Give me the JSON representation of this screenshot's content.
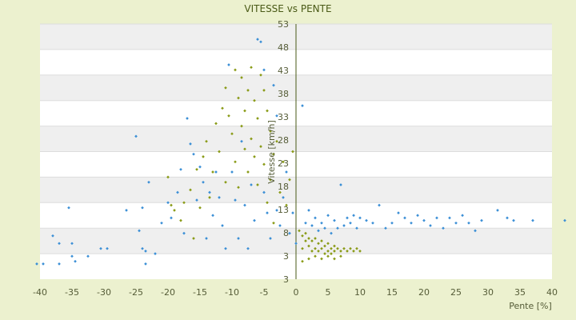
{
  "chart_data": {
    "type": "scatter",
    "title": "VITESSE vs PENTE",
    "xlabel": "Pente [%]",
    "ylabel": "Vitesse [km/h]",
    "xlim": [
      -40,
      40
    ],
    "ylim": [
      3,
      53
    ],
    "xticks": [
      "-40",
      "-35",
      "-30",
      "-25",
      "-20",
      "-15",
      "-10",
      "-5",
      "0",
      "5",
      "10",
      "15",
      "20",
      "25",
      "30",
      "35",
      "40"
    ],
    "yticks": [
      "3",
      "3",
      "8",
      "13",
      "18",
      "23",
      "28",
      "33",
      "38",
      "43",
      "48",
      "53"
    ],
    "grid": "horizontal alternating bands",
    "legend": "none",
    "colors": {
      "background": "#ecf1cf",
      "plot_band_light": "#ffffff",
      "plot_band_dark": "#efefef",
      "series_blue": "#3b8fd6",
      "series_olive": "#8a9b17",
      "axis": "#4a5a17"
    },
    "series": [
      {
        "color": "#3b8fd6",
        "points": [
          [
            -40.5,
            6.0
          ],
          [
            -39.5,
            6.0
          ],
          [
            -38.0,
            11.5
          ],
          [
            -37.0,
            10.0
          ],
          [
            -37.0,
            6.0
          ],
          [
            -35.5,
            17.0
          ],
          [
            -35.0,
            10.0
          ],
          [
            -35.0,
            7.5
          ],
          [
            -34.5,
            6.5
          ],
          [
            -32.5,
            7.5
          ],
          [
            -30.5,
            9.0
          ],
          [
            -29.5,
            9.0
          ],
          [
            -26.5,
            16.5
          ],
          [
            -25.0,
            31.0
          ],
          [
            -24.5,
            12.5
          ],
          [
            -24.0,
            17.0
          ],
          [
            -24.0,
            9.0
          ],
          [
            -23.5,
            6.0
          ],
          [
            -23.5,
            8.5
          ],
          [
            -23.0,
            22.0
          ],
          [
            -22.0,
            8.0
          ],
          [
            -21.0,
            14.0
          ],
          [
            -20.0,
            18.0
          ],
          [
            -19.5,
            15.0
          ],
          [
            -18.5,
            20.0
          ],
          [
            -18.0,
            24.5
          ],
          [
            -17.5,
            12.0
          ],
          [
            -17.0,
            34.5
          ],
          [
            -16.5,
            29.5
          ],
          [
            -16.0,
            27.5
          ],
          [
            -15.5,
            18.5
          ],
          [
            -15.0,
            25.0
          ],
          [
            -14.5,
            22.0
          ],
          [
            -14.0,
            11.0
          ],
          [
            -13.5,
            20.0
          ],
          [
            -13.0,
            15.5
          ],
          [
            -12.5,
            24.0
          ],
          [
            -12.0,
            19.0
          ],
          [
            -11.5,
            13.5
          ],
          [
            -11.0,
            9.0
          ],
          [
            -10.5,
            45.0
          ],
          [
            -10.0,
            24.0
          ],
          [
            -9.5,
            18.5
          ],
          [
            -9.0,
            11.0
          ],
          [
            -8.5,
            30.0
          ],
          [
            -8.0,
            17.5
          ],
          [
            -7.5,
            9.0
          ],
          [
            -7.0,
            21.5
          ],
          [
            -6.5,
            14.5
          ],
          [
            -6.0,
            50.0
          ],
          [
            -5.5,
            49.5
          ],
          [
            -5.0,
            44.0
          ],
          [
            -5.0,
            20.0
          ],
          [
            -4.5,
            16.0
          ],
          [
            -4.0,
            11.0
          ],
          [
            -3.5,
            41.0
          ],
          [
            -3.0,
            35.0
          ],
          [
            -3.0,
            16.5
          ],
          [
            -2.5,
            13.5
          ],
          [
            -2.0,
            19.0
          ],
          [
            -1.5,
            24.0
          ],
          [
            -1.0,
            12.0
          ],
          [
            -0.5,
            16.0
          ],
          [
            0.0,
            10.0
          ],
          [
            1.0,
            37.0
          ],
          [
            1.5,
            14.0
          ],
          [
            2.0,
            16.5
          ],
          [
            2.5,
            13.5
          ],
          [
            3.0,
            15.0
          ],
          [
            3.5,
            12.5
          ],
          [
            4.0,
            14.0
          ],
          [
            4.5,
            13.0
          ],
          [
            5.0,
            15.5
          ],
          [
            5.5,
            12.0
          ],
          [
            6.0,
            14.5
          ],
          [
            6.5,
            13.0
          ],
          [
            7.0,
            21.5
          ],
          [
            7.5,
            13.5
          ],
          [
            8.0,
            15.0
          ],
          [
            8.5,
            14.0
          ],
          [
            9.0,
            15.5
          ],
          [
            9.5,
            13.0
          ],
          [
            10.0,
            15.0
          ],
          [
            11.0,
            14.5
          ],
          [
            12.0,
            14.0
          ],
          [
            13.0,
            17.5
          ],
          [
            14.0,
            13.0
          ],
          [
            15.0,
            14.0
          ],
          [
            16.0,
            16.0
          ],
          [
            17.0,
            15.0
          ],
          [
            18.0,
            14.0
          ],
          [
            19.0,
            15.5
          ],
          [
            20.0,
            14.5
          ],
          [
            21.0,
            13.5
          ],
          [
            22.0,
            15.0
          ],
          [
            23.0,
            13.0
          ],
          [
            24.0,
            15.0
          ],
          [
            25.0,
            14.0
          ],
          [
            26.0,
            15.5
          ],
          [
            27.0,
            14.0
          ],
          [
            28.0,
            12.5
          ],
          [
            29.0,
            14.5
          ],
          [
            31.5,
            16.5
          ],
          [
            33.0,
            15.0
          ],
          [
            34.0,
            14.5
          ],
          [
            37.0,
            14.5
          ],
          [
            42.0,
            14.5
          ]
        ]
      },
      {
        "color": "#8a9b17",
        "points": [
          [
            -20.0,
            23.0
          ],
          [
            -19.5,
            17.5
          ],
          [
            -19.0,
            16.5
          ],
          [
            -18.0,
            14.5
          ],
          [
            -17.5,
            18.0
          ],
          [
            -16.5,
            20.5
          ],
          [
            -16.0,
            11.0
          ],
          [
            -15.5,
            24.5
          ],
          [
            -15.0,
            17.0
          ],
          [
            -14.5,
            27.0
          ],
          [
            -14.0,
            30.0
          ],
          [
            -13.5,
            19.0
          ],
          [
            -13.0,
            24.0
          ],
          [
            -12.5,
            33.5
          ],
          [
            -12.0,
            28.0
          ],
          [
            -11.5,
            36.5
          ],
          [
            -11.0,
            22.0
          ],
          [
            -11.0,
            40.5
          ],
          [
            -10.5,
            35.0
          ],
          [
            -10.0,
            31.5
          ],
          [
            -9.5,
            44.0
          ],
          [
            -9.5,
            26.0
          ],
          [
            -9.0,
            38.5
          ],
          [
            -9.0,
            21.0
          ],
          [
            -8.5,
            42.5
          ],
          [
            -8.5,
            33.0
          ],
          [
            -8.0,
            28.5
          ],
          [
            -8.0,
            36.0
          ],
          [
            -7.5,
            40.0
          ],
          [
            -7.5,
            24.0
          ],
          [
            -7.0,
            44.5
          ],
          [
            -7.0,
            30.5
          ],
          [
            -6.5,
            38.0
          ],
          [
            -6.5,
            27.0
          ],
          [
            -6.0,
            34.5
          ],
          [
            -6.0,
            21.5
          ],
          [
            -5.5,
            43.0
          ],
          [
            -5.5,
            29.0
          ],
          [
            -5.0,
            40.0
          ],
          [
            -5.0,
            25.5
          ],
          [
            -4.5,
            36.0
          ],
          [
            -4.5,
            18.0
          ],
          [
            -4.0,
            32.0
          ],
          [
            -4.0,
            22.5
          ],
          [
            -3.5,
            27.5
          ],
          [
            -3.5,
            14.0
          ],
          [
            -3.0,
            30.0
          ],
          [
            -2.5,
            20.0
          ],
          [
            -2.0,
            26.0
          ],
          [
            -1.5,
            17.5
          ],
          [
            -1.0,
            22.5
          ],
          [
            -0.5,
            28.0
          ],
          [
            0.5,
            12.5
          ],
          [
            1.0,
            11.5
          ],
          [
            1.0,
            9.0
          ],
          [
            1.5,
            12.0
          ],
          [
            1.5,
            10.5
          ],
          [
            2.0,
            11.0
          ],
          [
            2.0,
            9.5
          ],
          [
            2.5,
            10.5
          ],
          [
            2.5,
            8.5
          ],
          [
            3.0,
            11.0
          ],
          [
            3.0,
            9.0
          ],
          [
            3.5,
            10.0
          ],
          [
            3.5,
            8.5
          ],
          [
            4.0,
            10.5
          ],
          [
            4.0,
            9.0
          ],
          [
            4.5,
            9.5
          ],
          [
            4.5,
            8.0
          ],
          [
            5.0,
            10.0
          ],
          [
            5.0,
            8.5
          ],
          [
            5.5,
            9.0
          ],
          [
            5.5,
            8.0
          ],
          [
            6.0,
            9.5
          ],
          [
            6.0,
            8.5
          ],
          [
            6.5,
            9.0
          ],
          [
            7.0,
            8.5
          ],
          [
            7.5,
            9.0
          ],
          [
            8.0,
            8.5
          ],
          [
            8.5,
            9.0
          ],
          [
            9.0,
            8.5
          ],
          [
            9.5,
            9.0
          ],
          [
            10.0,
            8.5
          ],
          [
            1.0,
            6.5
          ],
          [
            2.0,
            7.0
          ],
          [
            3.0,
            7.5
          ],
          [
            4.0,
            7.0
          ],
          [
            5.0,
            7.5
          ],
          [
            6.0,
            7.0
          ],
          [
            7.0,
            7.5
          ]
        ]
      }
    ]
  }
}
